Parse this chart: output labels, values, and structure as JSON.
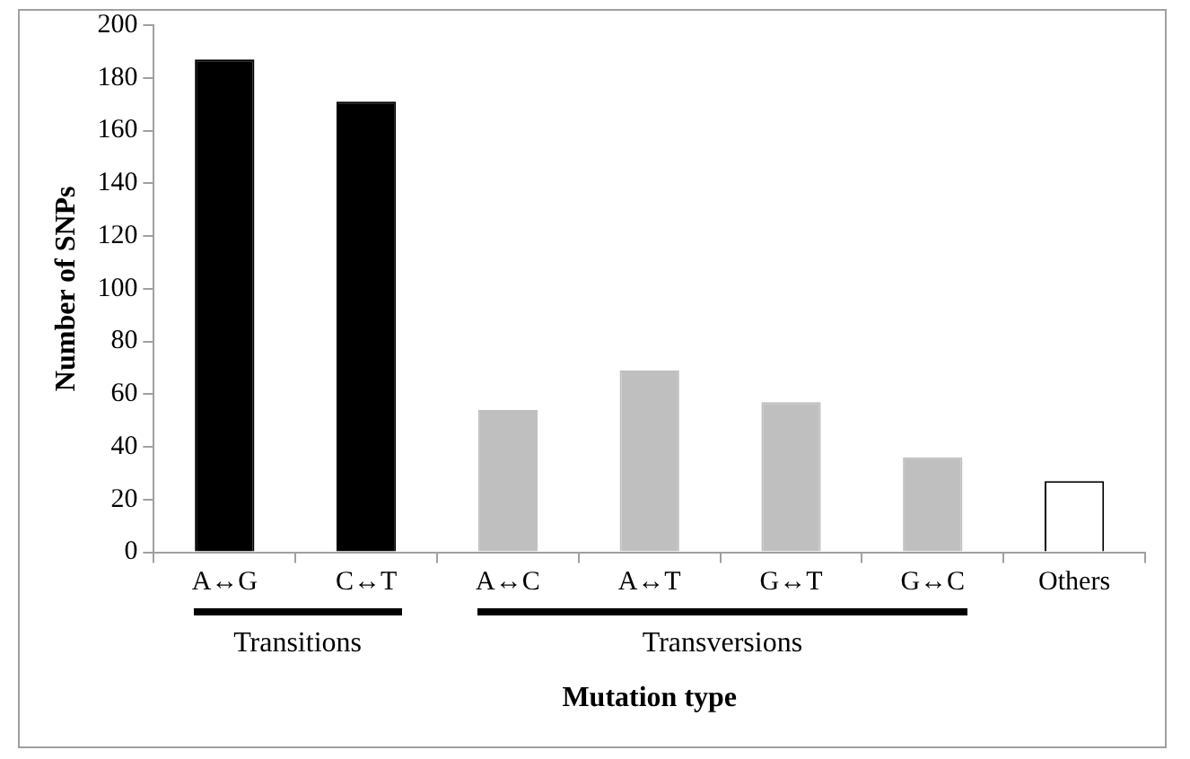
{
  "chart_data": {
    "type": "bar",
    "xlabel": "Mutation type",
    "ylabel": "Number of SNPs",
    "categories": [
      "A↔G",
      "C↔T",
      "A↔C",
      "A↔T",
      "G↔T",
      "G↔C",
      "Others"
    ],
    "values": [
      187,
      171,
      54,
      69,
      57,
      36,
      27
    ],
    "colors": [
      "#000000",
      "#000000",
      "#bfbfbf",
      "#bfbfbf",
      "#bfbfbf",
      "#bfbfbf",
      "#ffffff"
    ],
    "ylim": [
      0,
      200
    ],
    "yticks": [
      0,
      20,
      40,
      60,
      80,
      100,
      120,
      140,
      160,
      180,
      200
    ],
    "grid": false,
    "legend": false,
    "annotations": [
      "Transitions",
      "Transversions"
    ]
  }
}
